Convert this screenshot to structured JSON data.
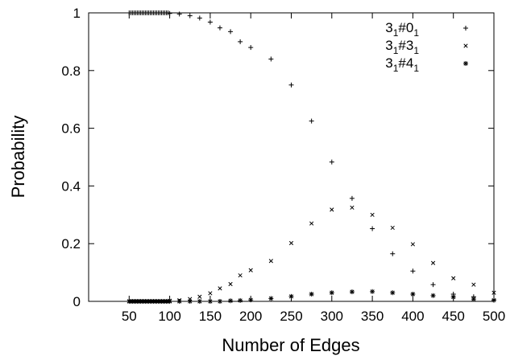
{
  "chart_data": {
    "type": "scatter",
    "xlabel": "Number of Edges",
    "ylabel": "Probability",
    "xlim": [
      0,
      500
    ],
    "ylim": [
      0,
      1
    ],
    "xticks": [
      50,
      100,
      150,
      200,
      250,
      300,
      350,
      400,
      450,
      500
    ],
    "yticks": [
      0,
      0.2,
      0.4,
      0.6,
      0.8,
      1
    ],
    "ytick_labels": [
      "0",
      "0.2",
      "0.4",
      "0.6",
      "0.8",
      "1"
    ],
    "grid": false,
    "legend_position": "top-right",
    "series": [
      {
        "name": "3_1#0_1",
        "label_parts": [
          "3",
          "1",
          "#0",
          "1"
        ],
        "marker": "plus",
        "x": [
          50,
          52,
          54,
          56,
          58,
          60,
          62,
          64,
          66,
          68,
          70,
          72,
          74,
          76,
          78,
          80,
          82,
          84,
          86,
          88,
          90,
          92,
          94,
          96,
          98,
          100,
          112,
          125,
          137,
          150,
          162,
          175,
          187,
          200,
          225,
          250,
          275,
          300,
          325,
          350,
          375,
          400,
          425,
          450,
          475,
          500
        ],
        "y": [
          1,
          1,
          1,
          1,
          1,
          1,
          1,
          1,
          1,
          1,
          1,
          1,
          1,
          1,
          1,
          1,
          1,
          1,
          1,
          1,
          1,
          1,
          1,
          1,
          1,
          0.998,
          0.996,
          0.99,
          0.982,
          0.968,
          0.948,
          0.935,
          0.9,
          0.88,
          0.84,
          0.75,
          0.625,
          0.483,
          0.357,
          0.252,
          0.165,
          0.105,
          0.058,
          0.025,
          0.016,
          0.005
        ]
      },
      {
        "name": "3_1#3_1",
        "label_parts": [
          "3",
          "1",
          "#3",
          "1"
        ],
        "marker": "cross",
        "x": [
          50,
          52,
          54,
          56,
          58,
          60,
          62,
          64,
          66,
          68,
          70,
          72,
          74,
          76,
          78,
          80,
          82,
          84,
          86,
          88,
          90,
          92,
          94,
          96,
          98,
          100,
          112,
          125,
          137,
          150,
          162,
          175,
          187,
          200,
          225,
          250,
          275,
          300,
          325,
          350,
          375,
          400,
          425,
          450,
          475,
          500
        ],
        "y": [
          0,
          0,
          0,
          0,
          0,
          0,
          0,
          0,
          0,
          0,
          0,
          0,
          0,
          0,
          0,
          0,
          0,
          0,
          0,
          0,
          0,
          0,
          0,
          0,
          0,
          0.002,
          0.004,
          0.008,
          0.016,
          0.028,
          0.045,
          0.06,
          0.09,
          0.108,
          0.14,
          0.202,
          0.27,
          0.318,
          0.325,
          0.3,
          0.255,
          0.198,
          0.133,
          0.08,
          0.058,
          0.03
        ]
      },
      {
        "name": "3_1#4_1",
        "label_parts": [
          "3",
          "1",
          "#4",
          "1"
        ],
        "marker": "star",
        "x": [
          50,
          52,
          54,
          56,
          58,
          60,
          62,
          64,
          66,
          68,
          70,
          72,
          74,
          76,
          78,
          80,
          82,
          84,
          86,
          88,
          90,
          92,
          94,
          96,
          98,
          100,
          112,
          125,
          137,
          150,
          162,
          175,
          187,
          200,
          225,
          250,
          275,
          300,
          325,
          350,
          375,
          400,
          425,
          450,
          475,
          500
        ],
        "y": [
          0,
          0,
          0,
          0,
          0,
          0,
          0,
          0,
          0,
          0,
          0,
          0,
          0,
          0,
          0,
          0,
          0,
          0,
          0,
          0,
          0,
          0,
          0,
          0,
          0,
          0,
          0,
          0,
          0,
          0,
          0,
          0.002,
          0.003,
          0.005,
          0.01,
          0.017,
          0.025,
          0.03,
          0.033,
          0.034,
          0.03,
          0.025,
          0.02,
          0.015,
          0.008,
          0.004
        ]
      }
    ]
  }
}
